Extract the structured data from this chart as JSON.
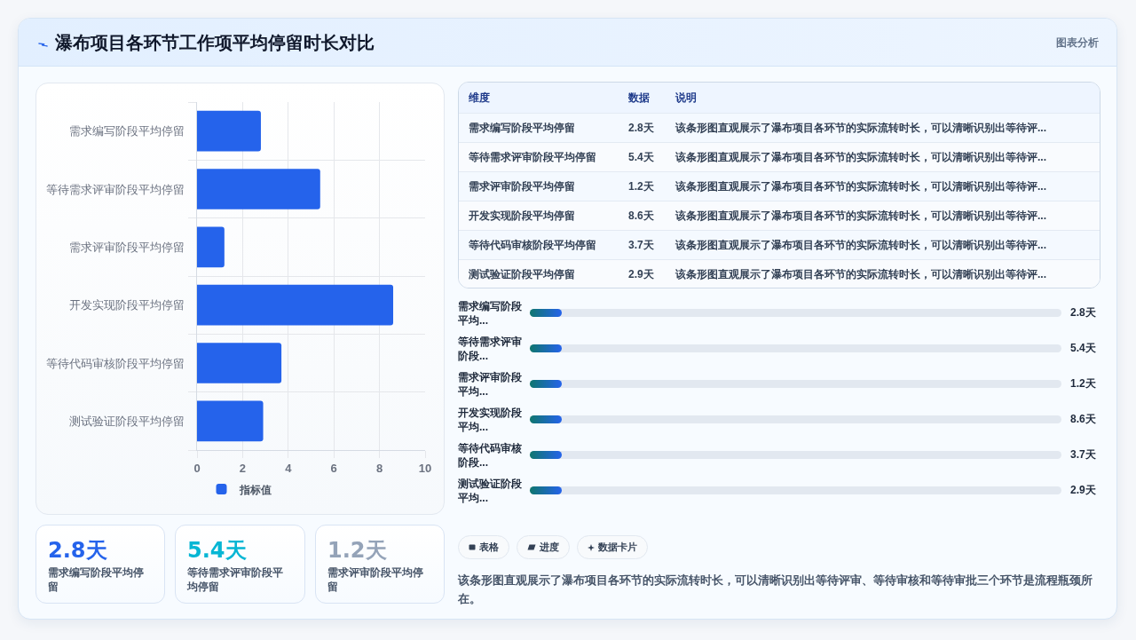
{
  "chart_data": [
    {
      "type": "bar",
      "orientation": "horizontal",
      "title": "瀑布项目各环节工作项平均停留时长对比",
      "categories": [
        "需求编写阶段平均停留",
        "等待需求评审阶段平均停留",
        "需求评审阶段平均停留",
        "开发实现阶段平均停留",
        "等待代码审核阶段平均停留",
        "测试验证阶段平均停留"
      ],
      "series": [
        {
          "name": "指标值",
          "color": "#2563eb",
          "values": [
            2.8,
            5.4,
            1.2,
            8.6,
            3.7,
            2.9
          ]
        }
      ],
      "xlim": [
        0,
        10
      ],
      "xticks": [
        0,
        2,
        4,
        6,
        8,
        10
      ],
      "grid": true,
      "legend": "bottom",
      "annotations": [
        "图表分析"
      ]
    },
    {
      "type": "other",
      "categories": [
        "需求编写阶段平均停留",
        "等待需求评审阶段平均停留",
        "需求评审阶段平均停留",
        "开发实现阶段平均停留",
        "等待代码审核阶段平均停留",
        "测试验证阶段平均停留"
      ],
      "value_labels": [
        "2.8天",
        "5.4天",
        "1.2天",
        "8.6天",
        "3.7天",
        "2.9天"
      ],
      "annotations": [
        "维度",
        "数据",
        "说明",
        "该条形图直观展示了瀑布项目各环节的实际流转时长，可以清晰识别出等待评...",
        "该条形图直观展示了瀑布项目各环节的实际流转时长，可以清晰识别出等待评...",
        "该条形图直观展示了瀑布项目各环节的实际流转时长，可以清晰识别出等待评...",
        "该条形图直观展示了瀑布项目各环节的实际流转时长，可以清晰识别出等待评...",
        "该条形图直观展示了瀑布项目各环节的实际流转时长，可以清晰识别出等待评...",
        "该条形图直观展示了瀑布项目各环节的实际流转时长，可以清晰识别出等待评..."
      ]
    },
    {
      "type": "other",
      "categories": [
        "需求编写阶段平均...",
        "等待需求评审阶段...",
        "需求评审阶段平均...",
        "开发实现阶段平均...",
        "等待代码审核阶段...",
        "测试验证阶段平均..."
      ],
      "value_labels": [
        "2.8天",
        "5.4天",
        "1.2天",
        "8.6天",
        "3.7天",
        "2.9天"
      ]
    },
    {
      "type": "other",
      "categories": [
        "需求编写阶段平均停留",
        "等待需求评审阶段平均停留",
        "需求评审阶段平均停留"
      ],
      "value_labels": [
        "2.8天",
        "5.4天",
        "1.2天"
      ]
    },
    {
      "type": "other",
      "annotations": [
        "表格",
        "进度",
        "数据卡片",
        "该条形图直观展示了瀑布项目各环节的实际流转时长，可以清晰识别出等待评审、等待审核和等待审批三个环节是流程瓶颈所在。"
      ]
    }
  ]
}
